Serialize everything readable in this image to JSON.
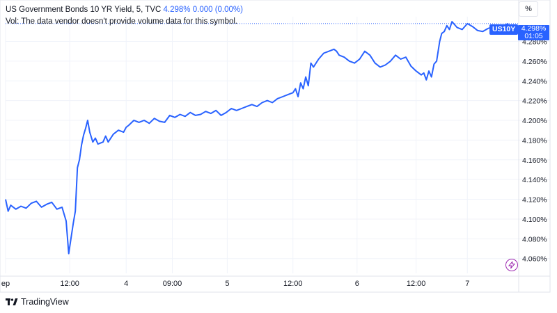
{
  "legend": {
    "title": "US Government Bonds 10 YR Yield, 5, TVC",
    "last": "4.298%",
    "change": "0.000 (0.00%)",
    "vol_note": "Vol: The data vendor doesn't provide volume data for this symbol."
  },
  "controls": {
    "percent_label": "%"
  },
  "price_tag": {
    "symbol": "US10Y",
    "price": "4.298%",
    "countdown": "01:05"
  },
  "footer": {
    "brand": "TradingView"
  },
  "colors": {
    "line": "#2962ff",
    "axis_text": "#131722",
    "grid": "#f0f3fa",
    "event_icon": "#9c27b0"
  },
  "icons": [
    "percent-scale-icon",
    "tradingview-logo-icon",
    "economic-event-icon"
  ],
  "chart_data": {
    "type": "line",
    "title": "US Government Bonds 10 YR Yield, 5, TVC",
    "xlabel": "",
    "ylabel": "",
    "ylim": [
      4.045,
      4.305
    ],
    "xlim": [
      0,
      100
    ],
    "y_ticks": [
      4.06,
      4.08,
      4.1,
      4.12,
      4.14,
      4.16,
      4.18,
      4.2,
      4.22,
      4.24,
      4.26,
      4.28
    ],
    "y_tick_labels": [
      "4.060%",
      "4.080%",
      "4.100%",
      "4.120%",
      "4.140%",
      "4.160%",
      "4.180%",
      "4.200%",
      "4.220%",
      "4.240%",
      "4.260%",
      "4.280%"
    ],
    "x_ticks": [
      {
        "x": 0,
        "label": "ep"
      },
      {
        "x": 12.5,
        "label": "12:00"
      },
      {
        "x": 23.5,
        "label": "4"
      },
      {
        "x": 32.5,
        "label": "09:00"
      },
      {
        "x": 43.2,
        "label": "5"
      },
      {
        "x": 56,
        "label": "12:00"
      },
      {
        "x": 68.5,
        "label": "6"
      },
      {
        "x": 80,
        "label": "12:00"
      },
      {
        "x": 90,
        "label": "7"
      }
    ],
    "last_value": 4.298,
    "grid": true,
    "series": [
      {
        "values": [
          [
            0,
            4.12
          ],
          [
            0.5,
            4.108
          ],
          [
            1,
            4.114
          ],
          [
            2,
            4.11
          ],
          [
            3,
            4.113
          ],
          [
            4,
            4.111
          ],
          [
            5,
            4.116
          ],
          [
            6,
            4.118
          ],
          [
            7,
            4.112
          ],
          [
            8,
            4.115
          ],
          [
            9,
            4.117
          ],
          [
            10,
            4.11
          ],
          [
            11,
            4.112
          ],
          [
            11.8,
            4.098
          ],
          [
            12.3,
            4.065
          ],
          [
            12.8,
            4.082
          ],
          [
            13.2,
            4.096
          ],
          [
            13.6,
            4.108
          ],
          [
            14,
            4.152
          ],
          [
            14.4,
            4.16
          ],
          [
            14.8,
            4.175
          ],
          [
            15.2,
            4.185
          ],
          [
            15.6,
            4.192
          ],
          [
            16,
            4.2
          ],
          [
            16.4,
            4.188
          ],
          [
            17,
            4.178
          ],
          [
            17.5,
            4.182
          ],
          [
            18,
            4.176
          ],
          [
            19,
            4.178
          ],
          [
            19.5,
            4.184
          ],
          [
            20,
            4.178
          ],
          [
            21,
            4.186
          ],
          [
            22,
            4.19
          ],
          [
            23,
            4.188
          ],
          [
            23.5,
            4.193
          ],
          [
            24,
            4.195
          ],
          [
            25,
            4.2
          ],
          [
            26,
            4.198
          ],
          [
            27,
            4.2
          ],
          [
            28,
            4.197
          ],
          [
            29,
            4.202
          ],
          [
            30,
            4.199
          ],
          [
            31,
            4.198
          ],
          [
            32,
            4.205
          ],
          [
            33,
            4.203
          ],
          [
            34,
            4.206
          ],
          [
            35,
            4.204
          ],
          [
            36,
            4.208
          ],
          [
            37,
            4.205
          ],
          [
            38,
            4.206
          ],
          [
            39,
            4.209
          ],
          [
            40,
            4.207
          ],
          [
            41,
            4.21
          ],
          [
            42,
            4.205
          ],
          [
            43,
            4.208
          ],
          [
            44,
            4.212
          ],
          [
            45,
            4.21
          ],
          [
            46,
            4.212
          ],
          [
            47,
            4.214
          ],
          [
            48,
            4.216
          ],
          [
            49,
            4.214
          ],
          [
            50,
            4.218
          ],
          [
            51,
            4.22
          ],
          [
            52,
            4.218
          ],
          [
            53,
            4.222
          ],
          [
            54,
            4.224
          ],
          [
            55,
            4.226
          ],
          [
            56,
            4.228
          ],
          [
            56.5,
            4.232
          ],
          [
            57,
            4.224
          ],
          [
            57.5,
            4.238
          ],
          [
            58,
            4.232
          ],
          [
            58.5,
            4.244
          ],
          [
            59,
            4.235
          ],
          [
            59.5,
            4.258
          ],
          [
            60,
            4.254
          ],
          [
            61,
            4.262
          ],
          [
            62,
            4.268
          ],
          [
            63,
            4.27
          ],
          [
            64,
            4.272
          ],
          [
            64.5,
            4.27
          ],
          [
            65,
            4.266
          ],
          [
            66,
            4.264
          ],
          [
            67,
            4.26
          ],
          [
            68,
            4.258
          ],
          [
            69,
            4.262
          ],
          [
            70,
            4.27
          ],
          [
            71,
            4.266
          ],
          [
            72,
            4.258
          ],
          [
            73,
            4.254
          ],
          [
            74,
            4.256
          ],
          [
            75,
            4.26
          ],
          [
            76,
            4.266
          ],
          [
            77,
            4.262
          ],
          [
            78,
            4.264
          ],
          [
            79,
            4.255
          ],
          [
            80,
            4.25
          ],
          [
            81,
            4.246
          ],
          [
            81.5,
            4.248
          ],
          [
            82,
            4.241
          ],
          [
            82.5,
            4.25
          ],
          [
            83,
            4.244
          ],
          [
            83.5,
            4.257
          ],
          [
            84,
            4.26
          ],
          [
            84.3,
            4.27
          ],
          [
            84.6,
            4.28
          ],
          [
            85,
            4.288
          ],
          [
            85.5,
            4.29
          ],
          [
            86,
            4.296
          ],
          [
            86.5,
            4.292
          ],
          [
            87,
            4.3
          ],
          [
            88,
            4.294
          ],
          [
            89,
            4.292
          ],
          [
            90,
            4.298
          ],
          [
            91,
            4.295
          ],
          [
            92,
            4.291
          ],
          [
            93,
            4.29
          ],
          [
            94,
            4.293
          ],
          [
            95,
            4.295
          ],
          [
            96,
            4.292
          ],
          [
            97,
            4.296
          ],
          [
            98,
            4.298
          ]
        ]
      }
    ]
  }
}
